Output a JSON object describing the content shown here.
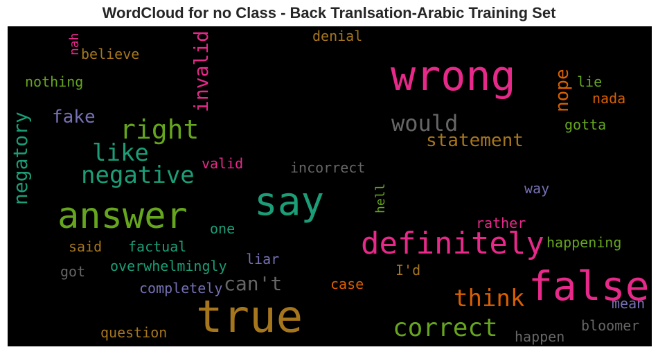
{
  "title": "WordCloud for no Class - Back Tranlsation-Arabic Training Set",
  "palette": {
    "pink": "#e7298a",
    "green": "#66a61e",
    "teal": "#1b9e77",
    "purple": "#7570b3",
    "orange": "#d95f02",
    "gold": "#a6761d",
    "gray": "#666666"
  },
  "words": [
    {
      "text": "true",
      "color": "gold"
    },
    {
      "text": "false",
      "color": "pink"
    },
    {
      "text": "wrong",
      "color": "pink"
    },
    {
      "text": "say",
      "color": "teal"
    },
    {
      "text": "answer",
      "color": "green"
    },
    {
      "text": "definitely",
      "color": "pink"
    },
    {
      "text": "right",
      "color": "green"
    },
    {
      "text": "negative",
      "color": "teal"
    },
    {
      "text": "like",
      "color": "teal"
    },
    {
      "text": "correct",
      "color": "green"
    },
    {
      "text": "think",
      "color": "orange"
    },
    {
      "text": "would",
      "color": "gray"
    },
    {
      "text": "statement",
      "color": "gold"
    },
    {
      "text": "negatory",
      "color": "teal"
    },
    {
      "text": "invalid",
      "color": "pink"
    },
    {
      "text": "fake",
      "color": "purple"
    },
    {
      "text": "nope",
      "color": "orange"
    },
    {
      "text": "can't",
      "color": "gray"
    },
    {
      "text": "denial",
      "color": "gold"
    },
    {
      "text": "believe",
      "color": "gold"
    },
    {
      "text": "nothing",
      "color": "green"
    },
    {
      "text": "nah",
      "color": "pink"
    },
    {
      "text": "lie",
      "color": "green"
    },
    {
      "text": "nada",
      "color": "orange"
    },
    {
      "text": "gotta",
      "color": "green"
    },
    {
      "text": "valid",
      "color": "pink"
    },
    {
      "text": "incorrect",
      "color": "gray"
    },
    {
      "text": "way",
      "color": "purple"
    },
    {
      "text": "hell",
      "color": "green"
    },
    {
      "text": "one",
      "color": "teal"
    },
    {
      "text": "rather",
      "color": "pink"
    },
    {
      "text": "happening",
      "color": "green"
    },
    {
      "text": "said",
      "color": "gold"
    },
    {
      "text": "factual",
      "color": "teal"
    },
    {
      "text": "liar",
      "color": "purple"
    },
    {
      "text": "got",
      "color": "gray"
    },
    {
      "text": "overwhelmingly",
      "color": "teal"
    },
    {
      "text": "I'd",
      "color": "gold"
    },
    {
      "text": "case",
      "color": "orange"
    },
    {
      "text": "completely",
      "color": "purple"
    },
    {
      "text": "mean",
      "color": "purple"
    },
    {
      "text": "question",
      "color": "gold"
    },
    {
      "text": "bloomer",
      "color": "gray"
    },
    {
      "text": "happen",
      "color": "gray"
    }
  ]
}
